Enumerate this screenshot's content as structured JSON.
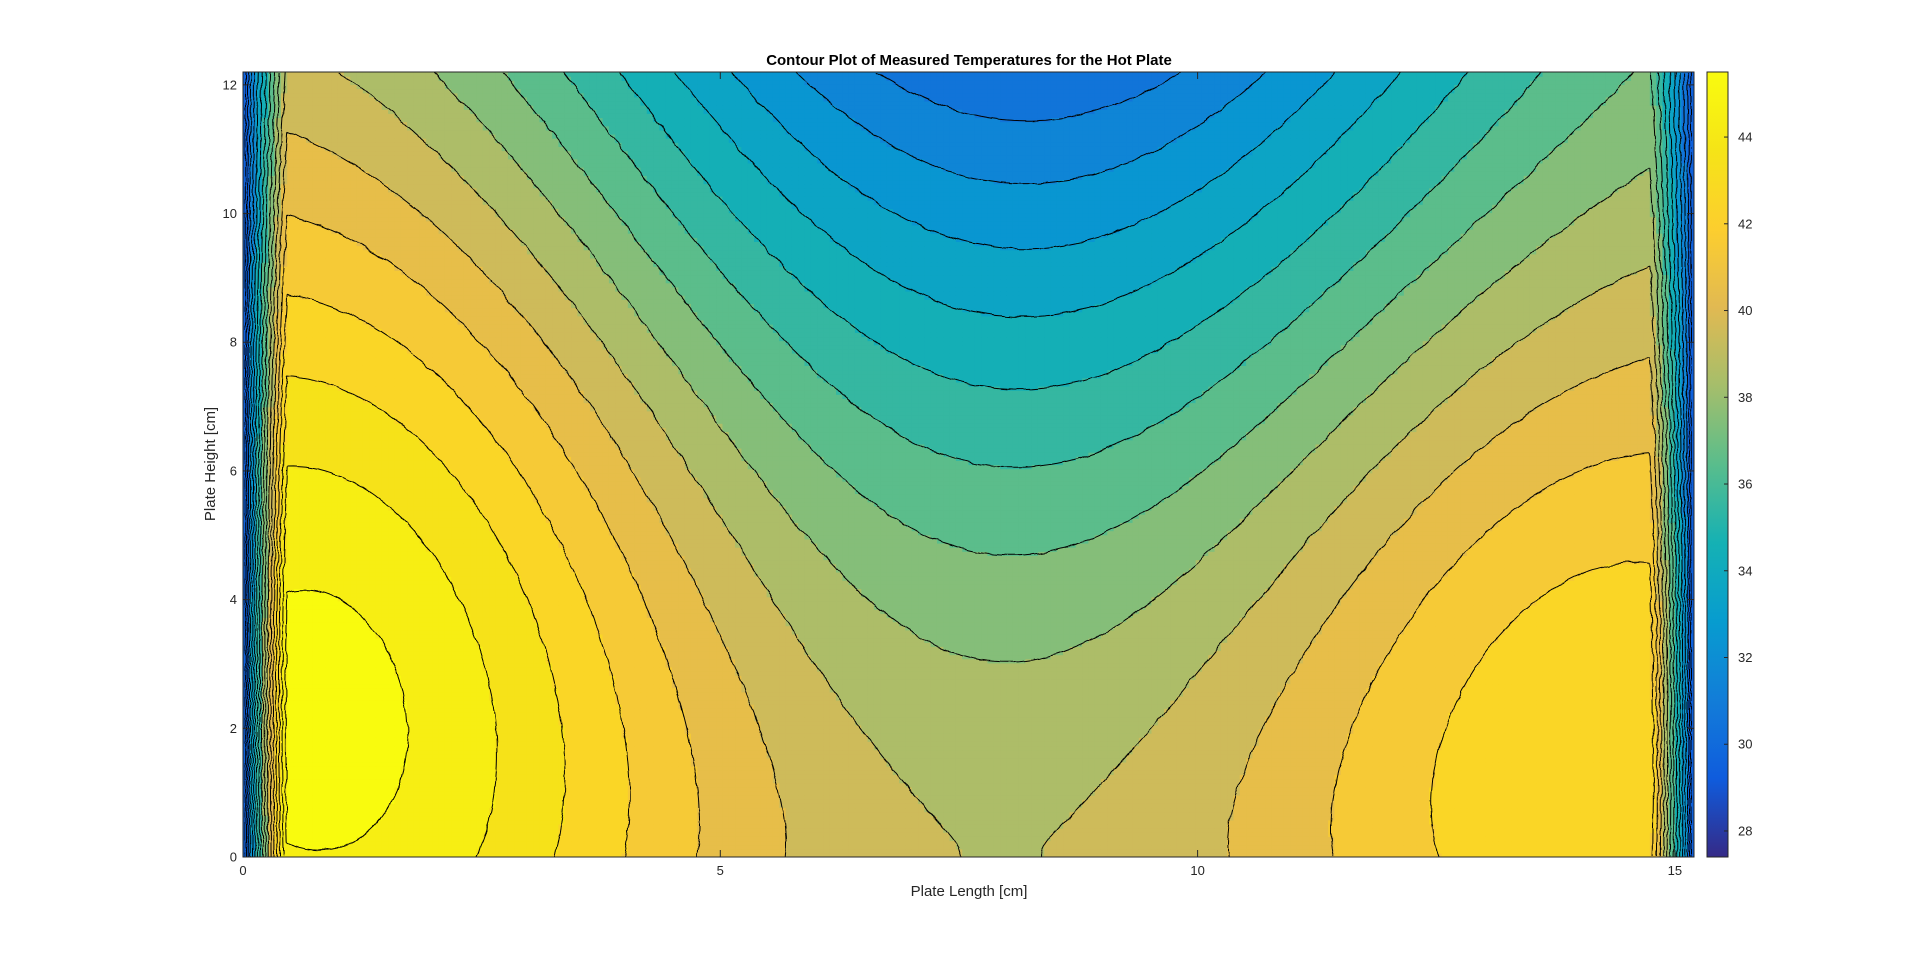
{
  "chart_data": {
    "type": "contourf",
    "title": "Contour Plot of Measured Temperatures for the Hot Plate",
    "xlabel": "Plate Length [cm]",
    "ylabel": "Plate Height [cm]",
    "xlim": [
      0,
      15.2
    ],
    "ylim": [
      0,
      12.2
    ],
    "xticks": [
      0,
      5,
      10,
      15
    ],
    "xtick_labels": [
      "0",
      "5",
      "10",
      "15"
    ],
    "yticks": [
      0,
      2,
      4,
      6,
      8,
      10,
      12
    ],
    "ytick_labels": [
      "0",
      "2",
      "4",
      "6",
      "8",
      "10",
      "12"
    ],
    "colorbar": {
      "range": [
        27.4,
        45.5
      ],
      "ticks": [
        28,
        30,
        32,
        34,
        36,
        38,
        40,
        42,
        44
      ],
      "tick_labels": [
        "28",
        "30",
        "32",
        "34",
        "36",
        "38",
        "40",
        "42",
        "44"
      ],
      "colormap": "parula"
    },
    "contour_line_color": "#000000",
    "annotations": {
      "hot_left_max_at": {
        "x": 0.9,
        "y": 2.5,
        "value": 45.3
      },
      "hot_right_max_at": {
        "x": 14.3,
        "y": 2.0,
        "value": 43.0
      },
      "cool_top_min_at": {
        "x": 8.2,
        "y": 12.2,
        "value": 30.0
      },
      "center_bottom_value": 38.3
    }
  }
}
